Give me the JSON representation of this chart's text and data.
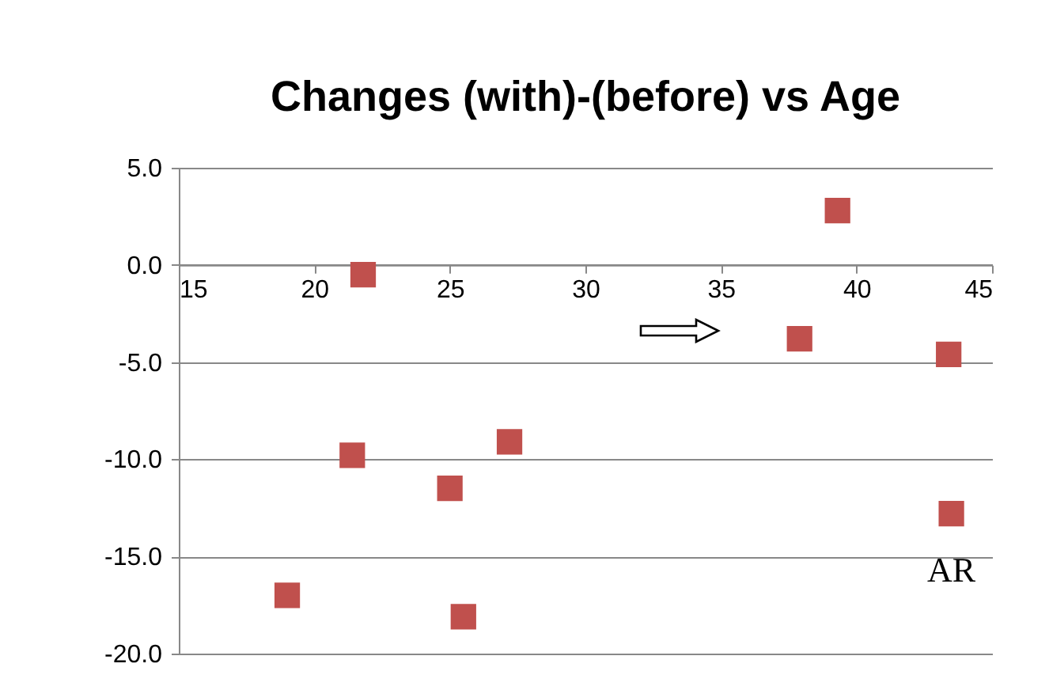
{
  "chart_data": {
    "type": "scatter",
    "title": "Changes (with)-(before) vs Age",
    "series": [
      {
        "color": "#c0504d",
        "x": [
          21.8,
          39.3,
          37.9,
          43.4,
          21.4,
          27.2,
          25.0,
          19.0,
          25.5,
          43.5
        ],
        "values": [
          -0.5,
          2.8,
          -3.8,
          -4.6,
          -9.8,
          -9.1,
          -11.5,
          -17.0,
          -18.1,
          -12.8
        ]
      }
    ],
    "xlim": [
      15,
      45
    ],
    "xticks": [
      15,
      20,
      25,
      30,
      35,
      40,
      45
    ],
    "ylim": [
      -20,
      5
    ],
    "yticks": [
      {
        "value": -20,
        "label": "-20.0"
      },
      {
        "value": -15,
        "label": "-15.0"
      },
      {
        "value": -10,
        "label": "-10.0"
      },
      {
        "value": -5,
        "label": "-5.0"
      },
      {
        "value": 0,
        "label": "0.0"
      },
      {
        "value": 5,
        "label": "5.0"
      }
    ],
    "grid": "y",
    "marker": "square",
    "annotations": [
      {
        "text": "AR",
        "x": 43.5,
        "y": -12.8
      }
    ]
  }
}
